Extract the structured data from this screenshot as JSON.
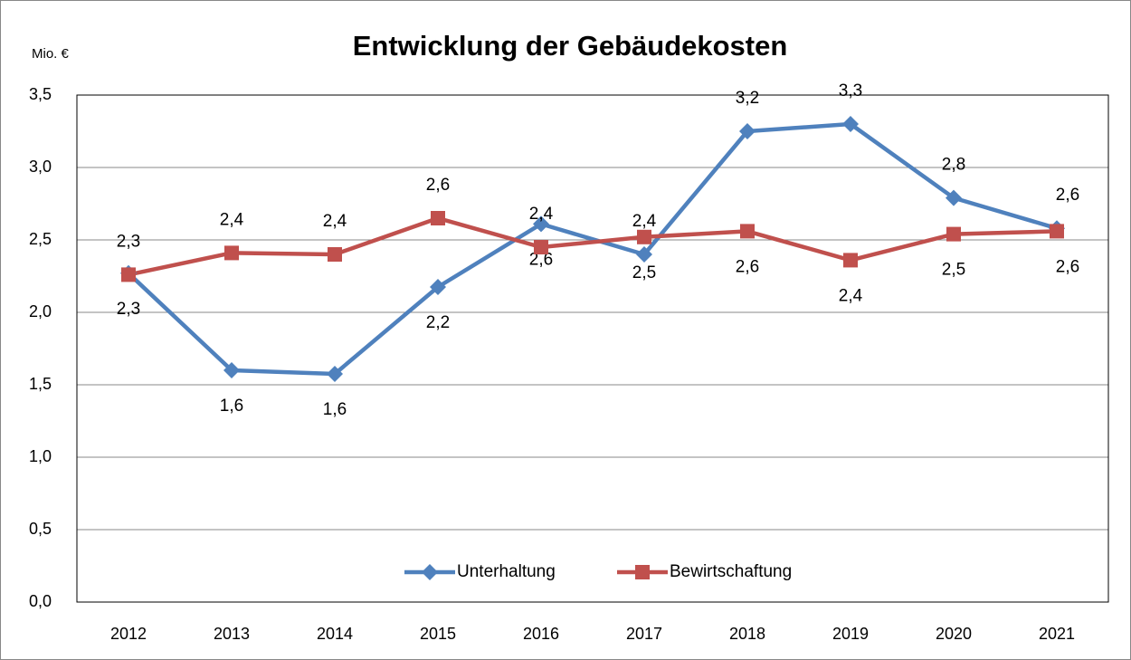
{
  "chart_data": {
    "type": "line",
    "title": "Entwicklung der Gebäudekosten",
    "ylabel": "Mio. €",
    "categories": [
      "2012",
      "2013",
      "2014",
      "2015",
      "2016",
      "2017",
      "2018",
      "2019",
      "2020",
      "2021"
    ],
    "series": [
      {
        "name": "Unterhaltung",
        "color": "#4f81bd",
        "marker": "diamond",
        "values": [
          2.27,
          1.6,
          1.575,
          2.175,
          2.61,
          2.4,
          3.25,
          3.3,
          2.79,
          2.58
        ],
        "value_labels": [
          "2,3",
          "1,6",
          "1,6",
          "2,2",
          "2,6",
          "2,4",
          "3,2",
          "3,3",
          "2,8",
          "2,6"
        ]
      },
      {
        "name": "Bewirtschaftung",
        "color": "#c0504d",
        "marker": "square",
        "values": [
          2.26,
          2.41,
          2.4,
          2.65,
          2.45,
          2.52,
          2.56,
          2.36,
          2.54,
          2.56
        ],
        "value_labels": [
          "2,3",
          "2,4",
          "2,4",
          "2,6",
          "2,4",
          "2,5",
          "2,6",
          "2,4",
          "2,5",
          "2,6"
        ]
      }
    ],
    "ylim": [
      0,
      3.5
    ],
    "yticks": [
      {
        "value": 0,
        "label": "0,0"
      },
      {
        "value": 0.5,
        "label": "0,5"
      },
      {
        "value": 1,
        "label": "1,0"
      },
      {
        "value": 1.5,
        "label": "1,5"
      },
      {
        "value": 2,
        "label": "2,0"
      },
      {
        "value": 2.5,
        "label": "2,5"
      },
      {
        "value": 3,
        "label": "3,0"
      },
      {
        "value": 3.5,
        "label": "3,5"
      }
    ],
    "grid": true,
    "legend": "bottom"
  }
}
